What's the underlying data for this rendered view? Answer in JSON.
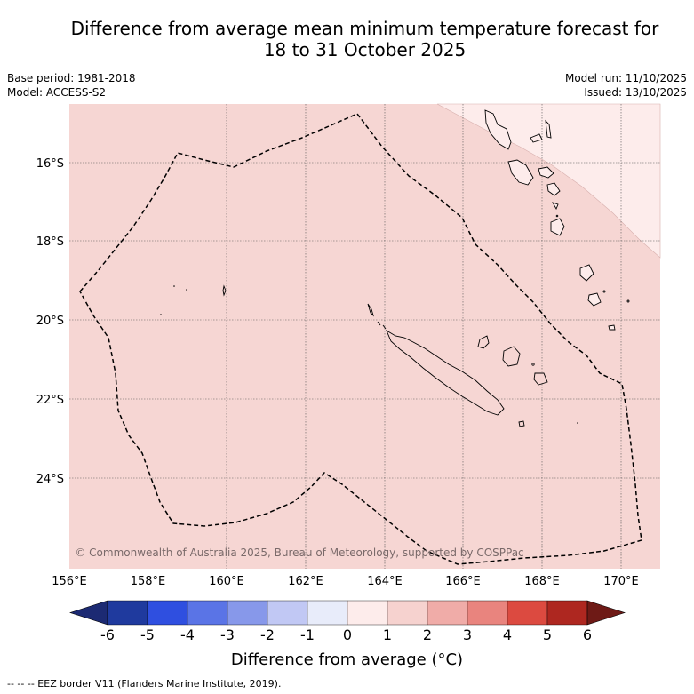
{
  "title_line1": "Difference from average mean minimum temperature forecast for",
  "title_line2": "18 to 31 October 2025",
  "base_period": "Base period: 1981-2018",
  "model": "Model: ACCESS-S2",
  "model_run": "Model run: 11/10/2025",
  "issued": "Issued: 13/10/2025",
  "copyright": "© Commonwealth of Australia 2025, Bureau of Meteorology, supported by COSPPac",
  "lat_labels": [
    "16°S",
    "18°S",
    "20°S",
    "22°S",
    "24°S"
  ],
  "lon_labels": [
    "156°E",
    "158°E",
    "160°E",
    "162°E",
    "164°E",
    "166°E",
    "168°E",
    "170°E"
  ],
  "colorbar": {
    "ticks": [
      "-6",
      "-5",
      "-4",
      "-3",
      "-2",
      "-1",
      "0",
      "1",
      "2",
      "3",
      "4",
      "5",
      "6"
    ],
    "colors": [
      "#1f3a9e",
      "#2f4fe0",
      "#5a74e6",
      "#8798ea",
      "#c1c8f4",
      "#e8ecfa",
      "#fdeceb",
      "#f6d2cf",
      "#f0aca8",
      "#e9847e",
      "#dc4a40",
      "#ae2720"
    ],
    "under_color": "#1c2a73",
    "over_color": "#6e1a16",
    "label": "Difference from average (°C)"
  },
  "map_colors": {
    "main_fill": "#f6d6d3",
    "light_fill": "#fdeceb"
  },
  "footer": "-- -- -- EEZ border V11 (Flanders Marine Institute, 2019)."
}
